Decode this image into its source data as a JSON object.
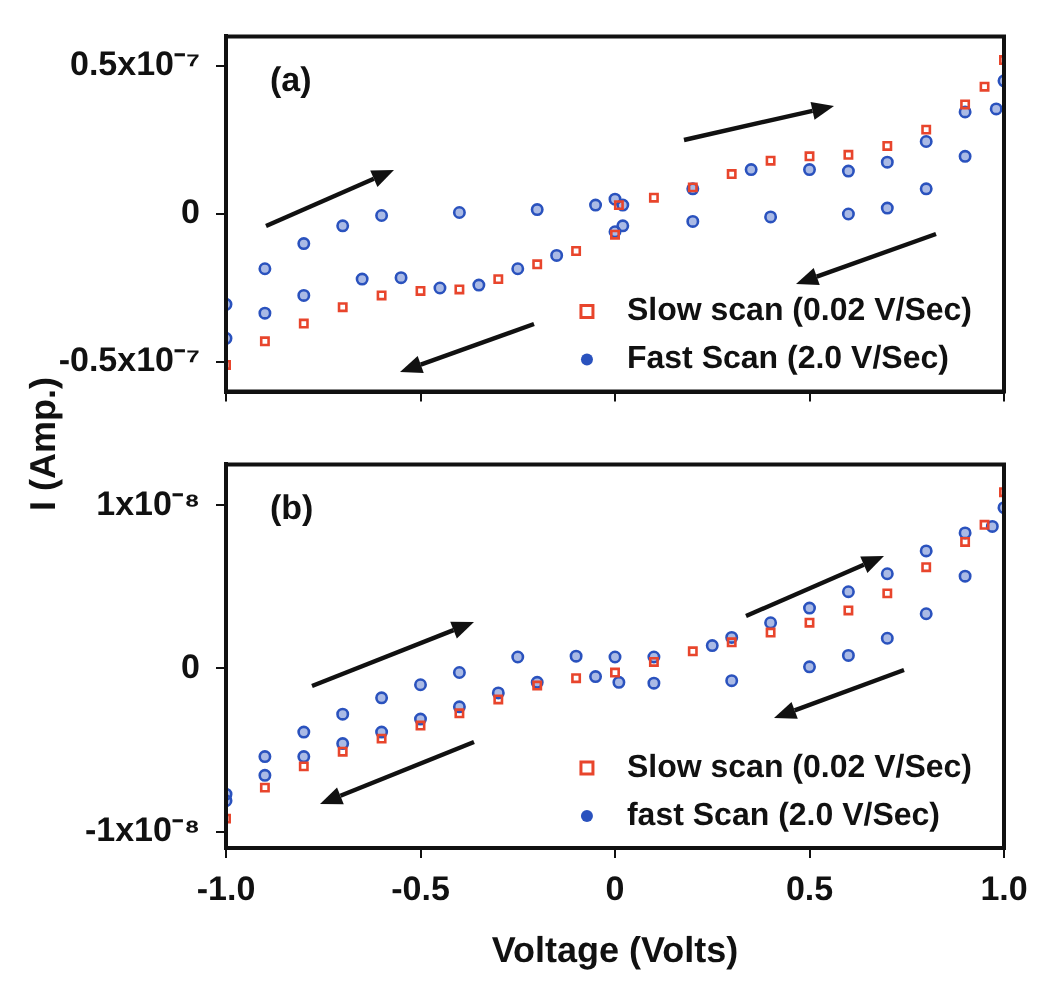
{
  "chart_data": [
    {
      "type": "scatter",
      "annotations": [
        "(a)"
      ],
      "ylabel": "I (Amp.)",
      "xlim": [
        -1,
        1
      ],
      "xticks": [
        -1,
        -0.5,
        0,
        0.5,
        1
      ],
      "ylim": [
        -6e-08,
        6e-08
      ],
      "yticks": [
        {
          "value": -5e-08,
          "label": "-0.5x10⁻⁷"
        },
        0,
        {
          "value": 5e-08,
          "label": "0.5x10⁻⁷"
        }
      ],
      "tick_labels": "y",
      "legend": "bottom right",
      "grid": false,
      "series": [
        {
          "name": "Slow scan (0.02 V/Sec)",
          "color": "#e8452c",
          "marker": "square",
          "x": [
            -1,
            -0.9,
            -0.8,
            -0.7,
            -0.6,
            -0.5,
            -0.4,
            -0.3,
            -0.2,
            -0.1,
            0,
            0.01,
            0.1,
            0.2,
            0.3,
            0.4,
            0.5,
            0.6,
            0.7,
            0.8,
            0.9,
            0.95,
            1
          ],
          "values": [
            -5.1e-08,
            -4.3e-08,
            -3.7e-08,
            -3.15e-08,
            -2.75e-08,
            -2.6e-08,
            -2.55e-08,
            -2.2e-08,
            -1.7e-08,
            -1.25e-08,
            -7e-09,
            3e-09,
            5.5e-09,
            9e-09,
            1.35e-08,
            1.8e-08,
            1.95e-08,
            2e-08,
            2.3e-08,
            2.85e-08,
            3.7e-08,
            4.3e-08,
            5.2e-08
          ]
        },
        {
          "name": "Fast Scan (2.0 V/Sec)",
          "color": "#2a52be",
          "marker": "circle",
          "x": [
            -1,
            -0.9,
            -0.8,
            -0.7,
            -0.6,
            -0.4,
            -0.2,
            -0.05,
            0,
            0.02,
            0.2,
            0.35,
            0.5,
            0.6,
            0.7,
            0.8,
            0.9,
            1,
            0.98,
            0.9,
            0.8,
            0.7,
            0.6,
            0.4,
            0.2,
            0.02,
            0,
            -0.15,
            -0.25,
            -0.35,
            -0.45,
            -0.55,
            -0.65,
            -0.8,
            -0.9,
            -1
          ],
          "values": [
            -3.05e-08,
            -1.85e-08,
            -1e-08,
            -4e-09,
            -5e-10,
            5e-10,
            1.5e-09,
            3e-09,
            5e-09,
            3e-09,
            8.5e-09,
            1.5e-08,
            1.5e-08,
            1.45e-08,
            1.75e-08,
            2.45e-08,
            3.45e-08,
            4.5e-08,
            3.55e-08,
            1.95e-08,
            8.5e-09,
            2e-09,
            0,
            -1e-09,
            -2.5e-09,
            -4e-09,
            -6e-09,
            -1.4e-08,
            -1.85e-08,
            -2.4e-08,
            -2.5e-08,
            -2.15e-08,
            -2.2e-08,
            -2.75e-08,
            -3.35e-08,
            -4.2e-08
          ]
        }
      ]
    },
    {
      "type": "scatter",
      "annotations": [
        "(b)"
      ],
      "xlabel": "Voltage (Volts)",
      "xlim": [
        -1,
        1
      ],
      "xticks": [
        {
          "value": -1,
          "label": "-1.0"
        },
        -0.5,
        0,
        0.5,
        {
          "value": 1,
          "label": "1.0"
        }
      ],
      "ylim": [
        -1.1e-08,
        1.25e-08
      ],
      "yticks": [
        {
          "value": -1e-08,
          "label": "-1x10⁻⁸"
        },
        0,
        {
          "value": 1e-08,
          "label": "1x10⁻⁸"
        }
      ],
      "legend": "bottom right",
      "grid": false,
      "series": [
        {
          "name": "Slow scan (0.02 V/Sec)",
          "color": "#e8452c",
          "marker": "square",
          "x": [
            -1,
            -0.9,
            -0.8,
            -0.7,
            -0.6,
            -0.5,
            -0.4,
            -0.3,
            -0.2,
            -0.1,
            0,
            0.1,
            0.2,
            0.3,
            0.4,
            0.5,
            0.6,
            0.7,
            0.8,
            0.9,
            0.95,
            1
          ],
          "values": [
            -9.2e-09,
            -7.3e-09,
            -6e-09,
            -5.1e-09,
            -4.3e-09,
            -3.5e-09,
            -2.75e-09,
            -1.9e-09,
            -1.05e-09,
            -6e-10,
            -2.5e-10,
            4e-10,
            1.05e-09,
            1.6e-09,
            2.2e-09,
            2.8e-09,
            3.55e-09,
            4.6e-09,
            6.2e-09,
            7.75e-09,
            8.8e-09,
            1.08e-08
          ]
        },
        {
          "name": "fast Scan (2.0 V/Sec)",
          "color": "#2a52be",
          "marker": "circle",
          "x": [
            -1,
            -0.9,
            -0.8,
            -0.7,
            -0.6,
            -0.5,
            -0.4,
            -0.25,
            -0.1,
            0,
            0.1,
            0.25,
            0.3,
            0.4,
            0.5,
            0.6,
            0.7,
            0.8,
            0.9,
            1,
            0.97,
            0.9,
            0.8,
            0.7,
            0.6,
            0.5,
            0.3,
            0.1,
            0.01,
            -0.05,
            -0.2,
            -0.3,
            -0.4,
            -0.5,
            -0.6,
            -0.7,
            -0.8,
            -0.9,
            -1
          ],
          "values": [
            -7.7e-09,
            -5.4e-09,
            -3.9e-09,
            -2.8e-09,
            -1.8e-09,
            -1e-09,
            -2.5e-10,
            7e-10,
            7.5e-10,
            7e-10,
            7e-10,
            1.4e-09,
            1.9e-09,
            2.8e-09,
            3.7e-09,
            4.7e-09,
            5.8e-09,
            7.2e-09,
            8.3e-09,
            9.85e-09,
            8.7e-09,
            5.65e-09,
            3.35e-09,
            1.85e-09,
            8e-10,
            1e-10,
            -7.5e-10,
            -9e-10,
            -8.5e-10,
            -5e-10,
            -8.5e-10,
            -1.5e-09,
            -2.35e-09,
            -3.1e-09,
            -3.9e-09,
            -4.6e-09,
            -5.4e-09,
            -6.55e-09,
            -8.1e-09
          ]
        }
      ]
    }
  ]
}
